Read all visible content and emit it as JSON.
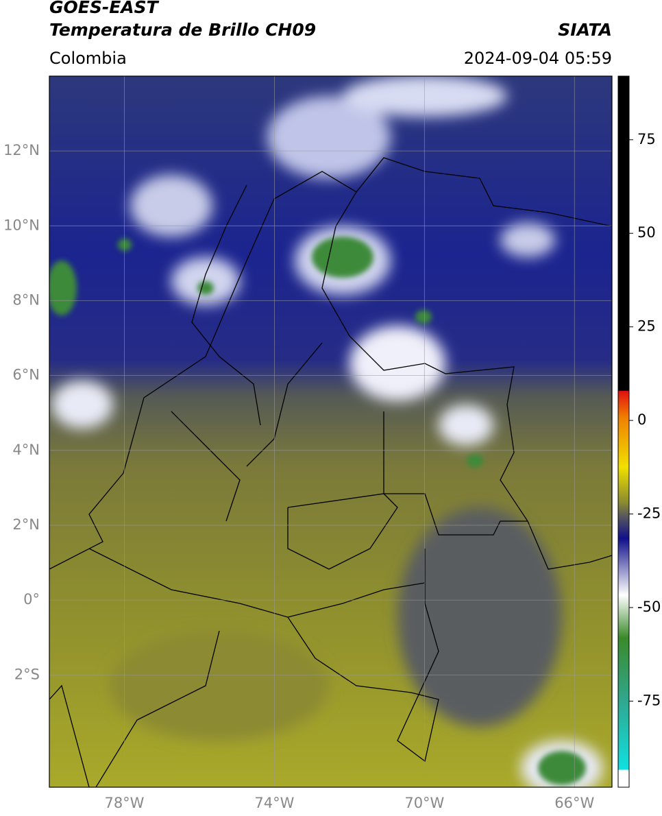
{
  "header": {
    "title": "GOES-EAST",
    "subtitle": "Temperatura de Brillo CH09",
    "region": "Colombia",
    "source": "SIATA",
    "timestamp": "2024-09-04 05:59"
  },
  "map": {
    "xlim": [
      -80,
      -65
    ],
    "ylim": [
      -5,
      14
    ],
    "xticks": [
      {
        "value": -78,
        "label": "78°W"
      },
      {
        "value": -74,
        "label": "74°W"
      },
      {
        "value": -70,
        "label": "70°W"
      },
      {
        "value": -66,
        "label": "66°W"
      }
    ],
    "yticks": [
      {
        "value": 12,
        "label": "12°N"
      },
      {
        "value": 10,
        "label": "10°N"
      },
      {
        "value": 8,
        "label": "8°N"
      },
      {
        "value": 6,
        "label": "6°N"
      },
      {
        "value": 4,
        "label": "4°N"
      },
      {
        "value": 2,
        "label": "2°N"
      },
      {
        "value": 0,
        "label": "0°"
      },
      {
        "value": -2,
        "label": "2°S"
      }
    ],
    "grid": true
  },
  "colorbar": {
    "ylim": [
      -98,
      92
    ],
    "yticks": [
      75,
      50,
      25,
      0,
      -25,
      -50,
      -75
    ]
  }
}
